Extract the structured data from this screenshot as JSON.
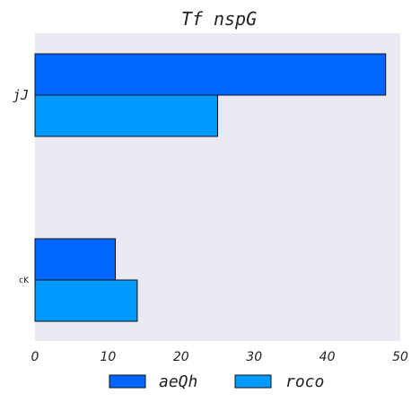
{
  "chart_data": {
    "type": "bar",
    "orientation": "horizontal",
    "title": "Tf nspG",
    "xlabel": "",
    "ylabel": "",
    "categories": [
      "jJ",
      "cK"
    ],
    "series": [
      {
        "name": "aeQh",
        "values": [
          48,
          11
        ],
        "color": "#0066ff"
      },
      {
        "name": "roco",
        "values": [
          25,
          14
        ],
        "color": "#0099ff"
      }
    ],
    "xlim": [
      0,
      50
    ],
    "xticks": [
      0,
      10,
      20,
      30,
      40,
      50
    ],
    "grid": false,
    "legend_position": "bottom-center",
    "plot_background": "#e9e9f1"
  }
}
